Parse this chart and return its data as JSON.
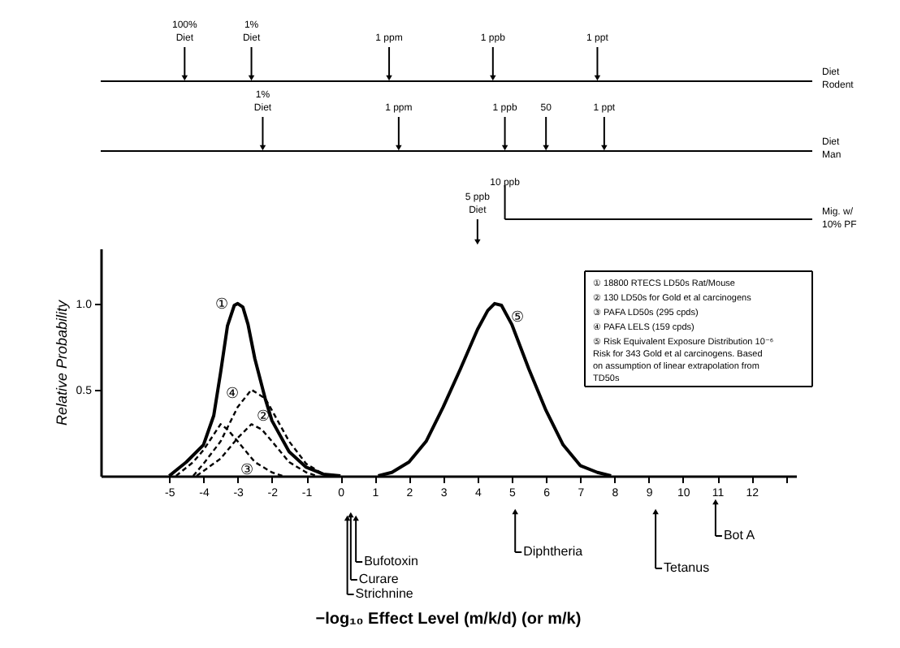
{
  "chart_data": {
    "type": "line",
    "ylabel": "Relative Probability",
    "xlim": [
      -7,
      13.3
    ],
    "ylim": [
      0,
      1.32
    ],
    "xticks": [
      -5,
      -4,
      -3,
      -2,
      -1,
      0,
      1,
      2,
      3,
      4,
      5,
      6,
      7,
      8,
      9,
      10,
      11,
      12,
      {
        "value": 13,
        "label": null
      }
    ],
    "yticks": [
      0.5,
      {
        "value": 1,
        "label": "1.0"
      }
    ],
    "grid": false,
    "series": [
      {
        "name": "①",
        "color": "#000000",
        "line_style": "solid",
        "x": [
          -5,
          -4.5,
          -4,
          -3.7,
          -3.5,
          -3.3,
          -3.1,
          -3,
          -2.85,
          -2.7,
          -2.5,
          -2.2,
          -2,
          -1.5,
          -1,
          -0.5,
          0
        ],
        "values": [
          0,
          0.08,
          0.18,
          0.35,
          0.6,
          0.87,
          0.99,
          1.0,
          0.98,
          0.88,
          0.68,
          0.45,
          0.32,
          0.14,
          0.05,
          0.01,
          0
        ]
      },
      {
        "name": "②",
        "color": "#000000",
        "line_style": "dashed",
        "x": [
          -4.2,
          -3.5,
          -3,
          -2.6,
          -2.3,
          -2,
          -1.5,
          -1,
          -0.7
        ],
        "values": [
          0,
          0.1,
          0.22,
          0.3,
          0.27,
          0.2,
          0.08,
          0.02,
          0
        ]
      },
      {
        "name": "③",
        "color": "#000000",
        "line_style": "dashed",
        "x": [
          -4.8,
          -4.3,
          -4,
          -3.5,
          -3.3,
          -3,
          -2.5,
          -2,
          -1.7
        ],
        "values": [
          0,
          0.08,
          0.15,
          0.3,
          0.27,
          0.2,
          0.08,
          0.02,
          0
        ]
      },
      {
        "name": "④",
        "color": "#000000",
        "line_style": "dashed",
        "x": [
          -4.3,
          -4,
          -3.5,
          -3,
          -2.6,
          -2.2,
          -2,
          -1.5,
          -1,
          -0.5,
          0
        ],
        "values": [
          0,
          0.07,
          0.2,
          0.4,
          0.5,
          0.45,
          0.38,
          0.2,
          0.07,
          0.01,
          0
        ]
      },
      {
        "name": "⑤",
        "color": "#000000",
        "line_style": "solid",
        "x": [
          1.1,
          1.5,
          2,
          2.5,
          3,
          3.5,
          4,
          4.3,
          4.5,
          4.7,
          5,
          5.5,
          6,
          6.5,
          7,
          7.5,
          7.9
        ],
        "values": [
          0,
          0.02,
          0.08,
          0.2,
          0.4,
          0.62,
          0.85,
          0.96,
          1.0,
          0.99,
          0.88,
          0.62,
          0.38,
          0.18,
          0.06,
          0.02,
          0
        ]
      }
    ],
    "annotations": [
      "100%\nDiet",
      "1%\nDiet",
      "1 ppm",
      "1 ppb",
      "1 ppt",
      "Diet\nRodent",
      "1%\nDiet",
      "1 ppm",
      "1 ppb",
      "50",
      "1 ppt",
      "Diet\nMan",
      "10 ppb",
      "Mig. w/\n10% PF",
      "5 ppb\nDiet",
      "18800 RTECS LD50s Rat/Mouse",
      "130 LD50s for Gold et al carcinogens",
      "PAFA LD50s (295 cpds)",
      "PAFA LELS (159 cpds)",
      "Risk Equivalent Exposure Distribution 10⁻⁶ Risk for 343 Gold et al carcinogens. Based on assumption of linear extrapolation from TD50s",
      "Strichnine",
      "Curare",
      "Bufotoxin",
      "Diphtheria",
      "Tetanus",
      "Bot A",
      "−log₁₀ Effect Level (m/k/d) (or m/k)"
    ]
  }
}
